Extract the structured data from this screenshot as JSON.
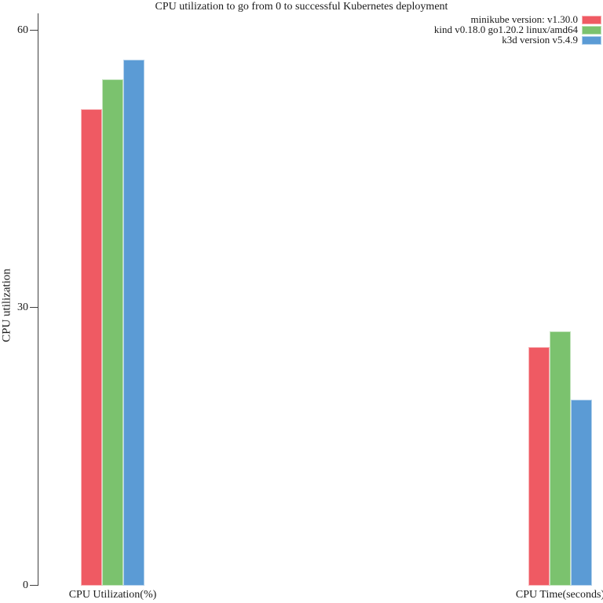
{
  "chart_data": {
    "type": "bar",
    "title": "CPU utilization to go from 0 to successful Kubernetes deployment",
    "xlabel": "",
    "ylabel": "CPU utilization",
    "categories": [
      "CPU Utilization(%)",
      "CPU Time(seconds)"
    ],
    "series": [
      {
        "name": "minikube version: v1.30.0",
        "color": "#EF5A63",
        "values": [
          51.5,
          25.8
        ]
      },
      {
        "name": "kind v0.18.0 go1.20.2 linux/amd64",
        "color": "#7BC26E",
        "values": [
          54.7,
          27.5
        ]
      },
      {
        "name": "k3d version v5.4.9",
        "color": "#5B9BD5",
        "values": [
          56.8,
          20.1
        ]
      }
    ],
    "y_ticks": [
      0,
      30,
      60
    ],
    "ylim": [
      0,
      62
    ],
    "grid": false,
    "legend_position": "top-right",
    "axis_color": "#404040",
    "text_color": "#1a1a1a"
  }
}
